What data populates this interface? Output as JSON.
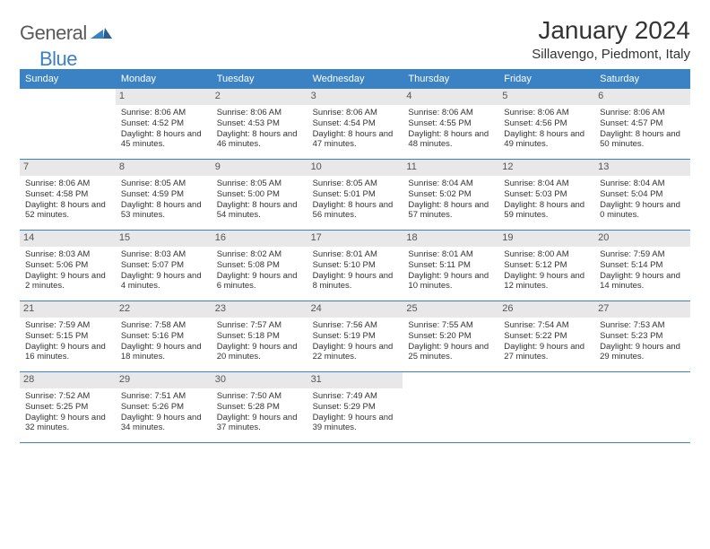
{
  "logo": {
    "text1": "General",
    "text2": "Blue"
  },
  "title": "January 2024",
  "subtitle": "Sillavengo, Piedmont, Italy",
  "colors": {
    "brand_blue": "#3b82c4",
    "header_bg": "#3b82c4",
    "header_fg": "#ffffff",
    "daynum_bg": "#e8e8e8",
    "text": "#333333",
    "page_bg": "#ffffff"
  },
  "day_names": [
    "Sunday",
    "Monday",
    "Tuesday",
    "Wednesday",
    "Thursday",
    "Friday",
    "Saturday"
  ],
  "start_offset": 1,
  "days": [
    {
      "n": 1,
      "sunrise": "8:06 AM",
      "sunset": "4:52 PM",
      "daylight": "8 hours and 45 minutes."
    },
    {
      "n": 2,
      "sunrise": "8:06 AM",
      "sunset": "4:53 PM",
      "daylight": "8 hours and 46 minutes."
    },
    {
      "n": 3,
      "sunrise": "8:06 AM",
      "sunset": "4:54 PM",
      "daylight": "8 hours and 47 minutes."
    },
    {
      "n": 4,
      "sunrise": "8:06 AM",
      "sunset": "4:55 PM",
      "daylight": "8 hours and 48 minutes."
    },
    {
      "n": 5,
      "sunrise": "8:06 AM",
      "sunset": "4:56 PM",
      "daylight": "8 hours and 49 minutes."
    },
    {
      "n": 6,
      "sunrise": "8:06 AM",
      "sunset": "4:57 PM",
      "daylight": "8 hours and 50 minutes."
    },
    {
      "n": 7,
      "sunrise": "8:06 AM",
      "sunset": "4:58 PM",
      "daylight": "8 hours and 52 minutes."
    },
    {
      "n": 8,
      "sunrise": "8:05 AM",
      "sunset": "4:59 PM",
      "daylight": "8 hours and 53 minutes."
    },
    {
      "n": 9,
      "sunrise": "8:05 AM",
      "sunset": "5:00 PM",
      "daylight": "8 hours and 54 minutes."
    },
    {
      "n": 10,
      "sunrise": "8:05 AM",
      "sunset": "5:01 PM",
      "daylight": "8 hours and 56 minutes."
    },
    {
      "n": 11,
      "sunrise": "8:04 AM",
      "sunset": "5:02 PM",
      "daylight": "8 hours and 57 minutes."
    },
    {
      "n": 12,
      "sunrise": "8:04 AM",
      "sunset": "5:03 PM",
      "daylight": "8 hours and 59 minutes."
    },
    {
      "n": 13,
      "sunrise": "8:04 AM",
      "sunset": "5:04 PM",
      "daylight": "9 hours and 0 minutes."
    },
    {
      "n": 14,
      "sunrise": "8:03 AM",
      "sunset": "5:06 PM",
      "daylight": "9 hours and 2 minutes."
    },
    {
      "n": 15,
      "sunrise": "8:03 AM",
      "sunset": "5:07 PM",
      "daylight": "9 hours and 4 minutes."
    },
    {
      "n": 16,
      "sunrise": "8:02 AM",
      "sunset": "5:08 PM",
      "daylight": "9 hours and 6 minutes."
    },
    {
      "n": 17,
      "sunrise": "8:01 AM",
      "sunset": "5:10 PM",
      "daylight": "9 hours and 8 minutes."
    },
    {
      "n": 18,
      "sunrise": "8:01 AM",
      "sunset": "5:11 PM",
      "daylight": "9 hours and 10 minutes."
    },
    {
      "n": 19,
      "sunrise": "8:00 AM",
      "sunset": "5:12 PM",
      "daylight": "9 hours and 12 minutes."
    },
    {
      "n": 20,
      "sunrise": "7:59 AM",
      "sunset": "5:14 PM",
      "daylight": "9 hours and 14 minutes."
    },
    {
      "n": 21,
      "sunrise": "7:59 AM",
      "sunset": "5:15 PM",
      "daylight": "9 hours and 16 minutes."
    },
    {
      "n": 22,
      "sunrise": "7:58 AM",
      "sunset": "5:16 PM",
      "daylight": "9 hours and 18 minutes."
    },
    {
      "n": 23,
      "sunrise": "7:57 AM",
      "sunset": "5:18 PM",
      "daylight": "9 hours and 20 minutes."
    },
    {
      "n": 24,
      "sunrise": "7:56 AM",
      "sunset": "5:19 PM",
      "daylight": "9 hours and 22 minutes."
    },
    {
      "n": 25,
      "sunrise": "7:55 AM",
      "sunset": "5:20 PM",
      "daylight": "9 hours and 25 minutes."
    },
    {
      "n": 26,
      "sunrise": "7:54 AM",
      "sunset": "5:22 PM",
      "daylight": "9 hours and 27 minutes."
    },
    {
      "n": 27,
      "sunrise": "7:53 AM",
      "sunset": "5:23 PM",
      "daylight": "9 hours and 29 minutes."
    },
    {
      "n": 28,
      "sunrise": "7:52 AM",
      "sunset": "5:25 PM",
      "daylight": "9 hours and 32 minutes."
    },
    {
      "n": 29,
      "sunrise": "7:51 AM",
      "sunset": "5:26 PM",
      "daylight": "9 hours and 34 minutes."
    },
    {
      "n": 30,
      "sunrise": "7:50 AM",
      "sunset": "5:28 PM",
      "daylight": "9 hours and 37 minutes."
    },
    {
      "n": 31,
      "sunrise": "7:49 AM",
      "sunset": "5:29 PM",
      "daylight": "9 hours and 39 minutes."
    }
  ],
  "labels": {
    "sunrise_prefix": "Sunrise: ",
    "sunset_prefix": "Sunset: ",
    "daylight_prefix": "Daylight: "
  }
}
